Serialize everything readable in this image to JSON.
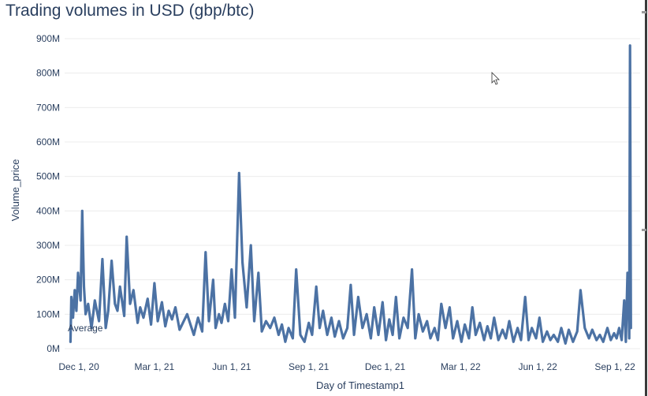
{
  "title": "Trading volumes in USD (gbp/btc)",
  "chart_data": {
    "type": "line",
    "title": "Trading volumes in USD (gbp/btc)",
    "xlabel": "Day of Timestamp1",
    "ylabel": "Volume_price",
    "x_range": [
      "2020-11-14",
      "2022-10-01"
    ],
    "ylim": [
      0,
      900000000
    ],
    "y_ticks": [
      0,
      100000000,
      200000000,
      300000000,
      400000000,
      500000000,
      600000000,
      700000000,
      800000000,
      900000000
    ],
    "y_tick_labels": [
      "0M",
      "100M",
      "200M",
      "300M",
      "400M",
      "500M",
      "600M",
      "700M",
      "800M",
      "900M"
    ],
    "x_ticks": [
      "2020-12-01",
      "2021-03-01",
      "2021-06-01",
      "2021-09-01",
      "2021-12-01",
      "2022-03-01",
      "2022-06-01",
      "2022-09-01"
    ],
    "x_tick_labels": [
      "Dec 1, 20",
      "Mar 1, 21",
      "Jun 1, 21",
      "Sep 1, 21",
      "Dec 1, 21",
      "Mar 1, 22",
      "Jun 1, 22",
      "Sep 1, 22"
    ],
    "grid": true,
    "line_color": "#4c72a4",
    "annotation": "Average",
    "series": [
      {
        "x": [
          "2020-11-21",
          "2020-11-22",
          "2020-11-24",
          "2020-11-26",
          "2020-11-28",
          "2020-11-30",
          "2020-12-03",
          "2020-12-05",
          "2020-12-07",
          "2020-12-09",
          "2020-12-12",
          "2020-12-16",
          "2020-12-20",
          "2020-12-25",
          "2020-12-29",
          "2021-01-02",
          "2021-01-05",
          "2021-01-09",
          "2021-01-13",
          "2021-01-16",
          "2021-01-19",
          "2021-01-24",
          "2021-01-27",
          "2021-01-31",
          "2021-02-04",
          "2021-02-09",
          "2021-02-12",
          "2021-02-16",
          "2021-02-21",
          "2021-02-25",
          "2021-03-01",
          "2021-03-05",
          "2021-03-10",
          "2021-03-14",
          "2021-03-18",
          "2021-03-22",
          "2021-03-26",
          "2021-03-31",
          "2021-04-05",
          "2021-04-09",
          "2021-04-13",
          "2021-04-17",
          "2021-04-22",
          "2021-04-27",
          "2021-05-01",
          "2021-05-05",
          "2021-05-10",
          "2021-05-13",
          "2021-05-17",
          "2021-05-20",
          "2021-05-24",
          "2021-05-28",
          "2021-06-01",
          "2021-06-05",
          "2021-06-10",
          "2021-06-14",
          "2021-06-19",
          "2021-06-24",
          "2021-06-28",
          "2021-07-03",
          "2021-07-07",
          "2021-07-12",
          "2021-07-17",
          "2021-07-22",
          "2021-07-27",
          "2021-07-31",
          "2021-08-04",
          "2021-08-08",
          "2021-08-13",
          "2021-08-17",
          "2021-08-22",
          "2021-08-27",
          "2021-09-01",
          "2021-09-05",
          "2021-09-10",
          "2021-09-14",
          "2021-09-18",
          "2021-09-23",
          "2021-09-28",
          "2021-10-02",
          "2021-10-07",
          "2021-10-12",
          "2021-10-17",
          "2021-10-21",
          "2021-10-25",
          "2021-10-30",
          "2021-11-04",
          "2021-11-09",
          "2021-11-14",
          "2021-11-18",
          "2021-11-23",
          "2021-11-28",
          "2021-12-02",
          "2021-12-06",
          "2021-12-10",
          "2021-12-14",
          "2021-12-18",
          "2021-12-23",
          "2021-12-28",
          "2022-01-02",
          "2022-01-06",
          "2022-01-10",
          "2022-01-15",
          "2022-01-20",
          "2022-01-24",
          "2022-01-29",
          "2022-02-02",
          "2022-02-06",
          "2022-02-11",
          "2022-02-16",
          "2022-02-20",
          "2022-02-25",
          "2022-03-02",
          "2022-03-06",
          "2022-03-11",
          "2022-03-15",
          "2022-03-19",
          "2022-03-24",
          "2022-03-29",
          "2022-04-02",
          "2022-04-06",
          "2022-04-10",
          "2022-04-15",
          "2022-04-20",
          "2022-04-24",
          "2022-04-28",
          "2022-05-03",
          "2022-05-08",
          "2022-05-12",
          "2022-05-17",
          "2022-05-21",
          "2022-05-25",
          "2022-05-30",
          "2022-06-03",
          "2022-06-07",
          "2022-06-12",
          "2022-06-16",
          "2022-06-20",
          "2022-06-25",
          "2022-06-29",
          "2022-07-04",
          "2022-07-08",
          "2022-07-13",
          "2022-07-18",
          "2022-07-22",
          "2022-07-27",
          "2022-08-01",
          "2022-08-05",
          "2022-08-10",
          "2022-08-14",
          "2022-08-18",
          "2022-08-23",
          "2022-08-27",
          "2022-08-31",
          "2022-09-03",
          "2022-09-06",
          "2022-09-09",
          "2022-09-12",
          "2022-09-14",
          "2022-09-16",
          "2022-09-17",
          "2022-09-18",
          "2022-09-19",
          "2022-09-20"
        ],
        "y": [
          20000000,
          150000000,
          90000000,
          170000000,
          110000000,
          220000000,
          140000000,
          400000000,
          180000000,
          100000000,
          130000000,
          60000000,
          140000000,
          80000000,
          260000000,
          60000000,
          110000000,
          255000000,
          130000000,
          110000000,
          180000000,
          95000000,
          325000000,
          130000000,
          170000000,
          75000000,
          120000000,
          90000000,
          145000000,
          70000000,
          190000000,
          80000000,
          135000000,
          65000000,
          110000000,
          85000000,
          120000000,
          55000000,
          80000000,
          100000000,
          70000000,
          40000000,
          90000000,
          50000000,
          280000000,
          80000000,
          200000000,
          60000000,
          100000000,
          75000000,
          130000000,
          80000000,
          230000000,
          90000000,
          510000000,
          250000000,
          120000000,
          300000000,
          80000000,
          220000000,
          50000000,
          80000000,
          60000000,
          90000000,
          40000000,
          70000000,
          20000000,
          60000000,
          30000000,
          230000000,
          40000000,
          20000000,
          75000000,
          40000000,
          180000000,
          60000000,
          110000000,
          40000000,
          90000000,
          35000000,
          80000000,
          30000000,
          60000000,
          185000000,
          40000000,
          150000000,
          60000000,
          100000000,
          30000000,
          120000000,
          40000000,
          135000000,
          25000000,
          85000000,
          40000000,
          150000000,
          30000000,
          90000000,
          60000000,
          230000000,
          30000000,
          100000000,
          50000000,
          80000000,
          30000000,
          60000000,
          25000000,
          130000000,
          60000000,
          120000000,
          30000000,
          80000000,
          20000000,
          70000000,
          30000000,
          120000000,
          40000000,
          75000000,
          25000000,
          65000000,
          30000000,
          90000000,
          25000000,
          55000000,
          30000000,
          80000000,
          20000000,
          60000000,
          25000000,
          150000000,
          25000000,
          60000000,
          30000000,
          90000000,
          20000000,
          50000000,
          25000000,
          40000000,
          20000000,
          60000000,
          15000000,
          55000000,
          20000000,
          50000000,
          170000000,
          60000000,
          30000000,
          55000000,
          25000000,
          40000000,
          20000000,
          60000000,
          25000000,
          45000000,
          30000000,
          60000000,
          25000000,
          140000000,
          20000000,
          220000000,
          180000000,
          30000000,
          880000000,
          60000000
        ]
      }
    ]
  }
}
